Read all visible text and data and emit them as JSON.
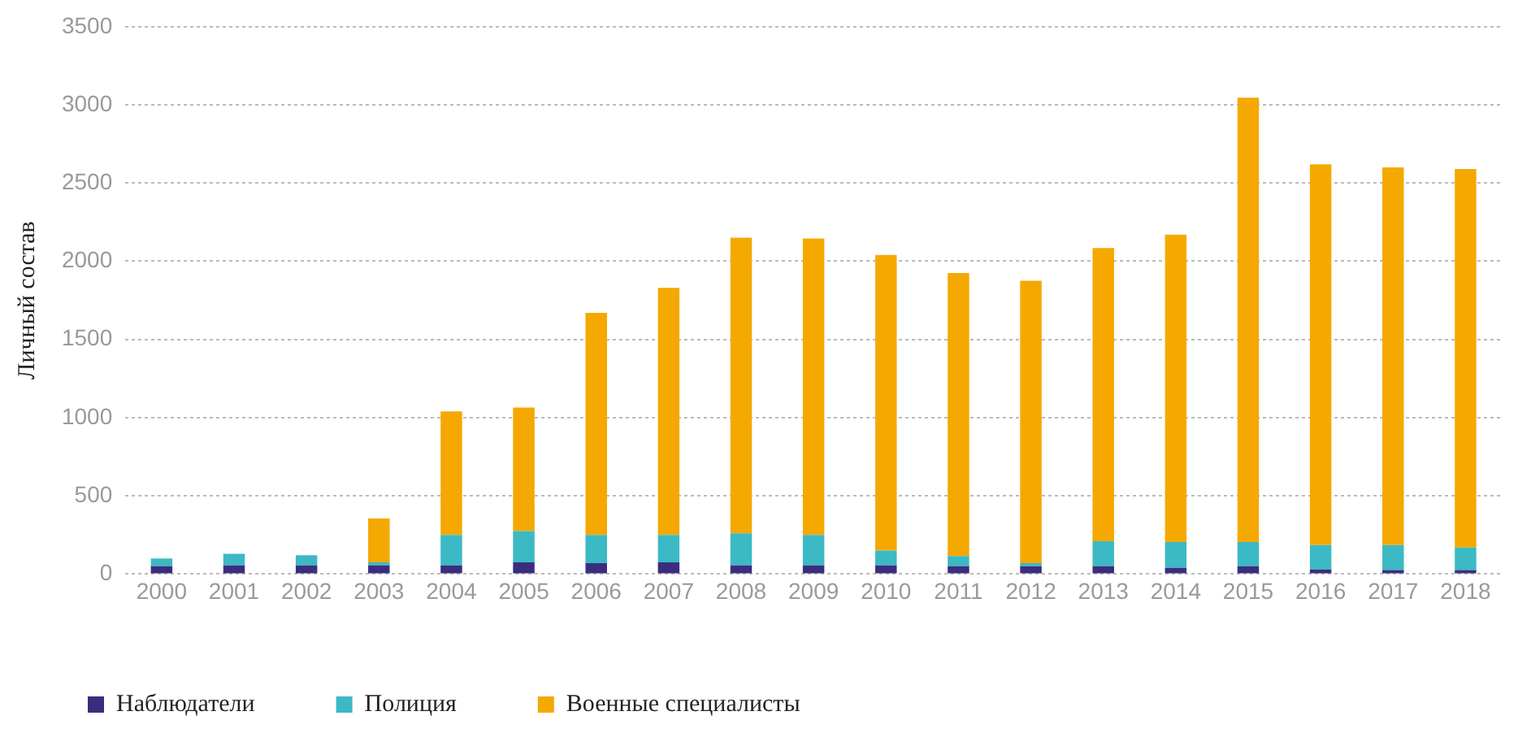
{
  "chart_data": {
    "type": "bar",
    "stacked": true,
    "ylabel": "Личный состав",
    "categories": [
      "2000",
      "2001",
      "2002",
      "2003",
      "2004",
      "2005",
      "2006",
      "2007",
      "2008",
      "2009",
      "2010",
      "2011",
      "2012",
      "2013",
      "2014",
      "2015",
      "2016",
      "2017",
      "2018"
    ],
    "series": [
      {
        "name": "Наблюдатели",
        "color": "#3a2d7f",
        "values": [
          50,
          55,
          55,
          55,
          55,
          75,
          70,
          75,
          55,
          55,
          55,
          50,
          50,
          50,
          40,
          50,
          30,
          25,
          25
        ]
      },
      {
        "name": "Полиция",
        "color": "#3bb9c4",
        "values": [
          50,
          75,
          65,
          20,
          195,
          200,
          180,
          175,
          205,
          195,
          95,
          65,
          20,
          160,
          165,
          155,
          155,
          160,
          145
        ]
      },
      {
        "name": "Военные специалисты",
        "color": "#f5a800",
        "values": [
          0,
          0,
          0,
          280,
          790,
          790,
          1420,
          1580,
          1890,
          1895,
          1890,
          1810,
          1805,
          1875,
          1965,
          2840,
          2435,
          2415,
          2420
        ]
      }
    ],
    "ylim": [
      0,
      3500
    ],
    "yticks": [
      0,
      500,
      1000,
      1500,
      2000,
      2500,
      3000,
      3500
    ],
    "grid": "y",
    "legend": "bottom left"
  }
}
